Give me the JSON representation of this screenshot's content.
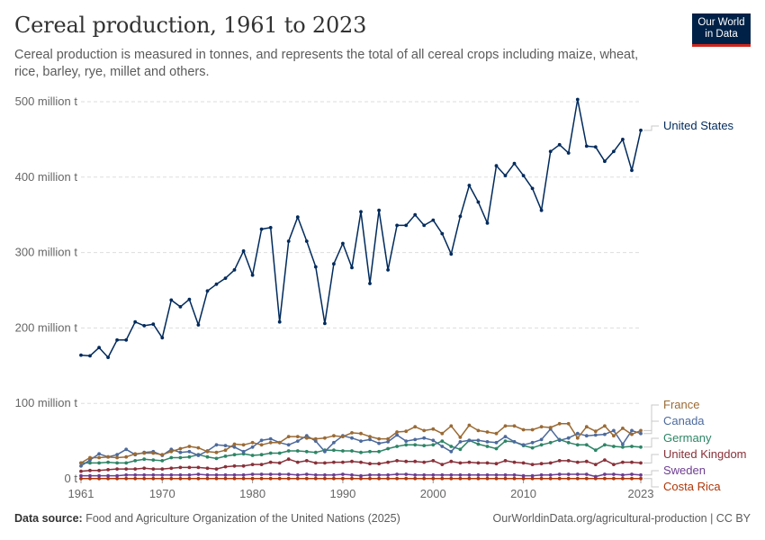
{
  "header": {
    "title": "Cereal production, 1961 to 2023",
    "subtitle": "Cereal production is measured in tonnes, and represents the total of all cereal crops including maize, wheat, rice, barley, rye, millet and others.",
    "logo_line1": "Our World",
    "logo_line2": "in Data"
  },
  "footer": {
    "source_label": "Data source:",
    "source_text": "Food and Agriculture Organization of the United Nations (2025)",
    "right_text": "OurWorldinData.org/agricultural-production | CC BY"
  },
  "chart_data": {
    "type": "line",
    "x_ticks": [
      1961,
      1970,
      1980,
      1990,
      2000,
      2010,
      2023
    ],
    "y_ticks": [
      {
        "value": 0,
        "label": "0 t"
      },
      {
        "value": 100,
        "label": "100 million t"
      },
      {
        "value": 200,
        "label": "200 million t"
      },
      {
        "value": 300,
        "label": "300 million t"
      },
      {
        "value": 400,
        "label": "400 million t"
      },
      {
        "value": 500,
        "label": "500 million t"
      }
    ],
    "ylim": [
      0,
      500
    ],
    "xlim": [
      1961,
      2023
    ],
    "y_unit": "million t",
    "grid": true,
    "x": [
      1961,
      1962,
      1963,
      1964,
      1965,
      1966,
      1967,
      1968,
      1969,
      1970,
      1971,
      1972,
      1973,
      1974,
      1975,
      1976,
      1977,
      1978,
      1979,
      1980,
      1981,
      1982,
      1983,
      1984,
      1985,
      1986,
      1987,
      1988,
      1989,
      1990,
      1991,
      1992,
      1993,
      1994,
      1995,
      1996,
      1997,
      1998,
      1999,
      2000,
      2001,
      2002,
      2003,
      2004,
      2005,
      2006,
      2007,
      2008,
      2009,
      2010,
      2011,
      2012,
      2013,
      2014,
      2015,
      2016,
      2017,
      2018,
      2019,
      2020,
      2021,
      2022,
      2023
    ],
    "series": [
      {
        "name": "United States",
        "color": "#002a5c",
        "values": [
          164,
          163,
          174,
          161,
          184,
          184,
          208,
          203,
          205,
          187,
          237,
          228,
          238,
          204,
          249,
          258,
          266,
          277,
          302,
          270,
          331,
          333,
          208,
          315,
          347,
          315,
          281,
          206,
          285,
          312,
          280,
          354,
          259,
          356,
          277,
          336,
          336,
          350,
          336,
          343,
          325,
          298,
          348,
          389,
          367,
          339,
          415,
          402,
          418,
          402,
          385,
          356,
          434,
          443,
          432,
          503,
          441,
          440,
          421,
          434,
          450,
          409,
          462
        ]
      },
      {
        "name": "France",
        "color": "#9a6a34",
        "values": [
          21,
          28,
          28,
          29,
          28,
          29,
          33,
          34,
          34,
          32,
          36,
          40,
          43,
          41,
          36,
          35,
          38,
          46,
          45,
          48,
          45,
          48,
          48,
          56,
          56,
          54,
          53,
          54,
          57,
          56,
          61,
          60,
          56,
          53,
          53,
          62,
          63,
          69,
          64,
          66,
          60,
          70,
          55,
          71,
          64,
          62,
          60,
          70,
          70,
          65,
          65,
          69,
          68,
          73,
          73,
          54,
          69,
          63,
          70,
          57,
          67,
          59,
          64
        ]
      },
      {
        "name": "Canada",
        "color": "#4c6a9c",
        "values": [
          17,
          25,
          33,
          29,
          32,
          39,
          32,
          35,
          36,
          31,
          39,
          35,
          36,
          31,
          37,
          45,
          44,
          42,
          36,
          42,
          51,
          53,
          48,
          45,
          50,
          57,
          50,
          36,
          48,
          57,
          54,
          50,
          52,
          47,
          49,
          58,
          50,
          52,
          54,
          51,
          43,
          36,
          49,
          51,
          51,
          49,
          48,
          56,
          49,
          45,
          48,
          52,
          66,
          51,
          54,
          60,
          57,
          58,
          59,
          64,
          46,
          64,
          60
        ]
      },
      {
        "name": "Germany",
        "color": "#2d8566",
        "values": [
          21,
          21,
          21,
          22,
          21,
          21,
          24,
          26,
          25,
          24,
          28,
          28,
          29,
          32,
          29,
          27,
          30,
          32,
          33,
          31,
          32,
          34,
          34,
          37,
          37,
          36,
          35,
          38,
          38,
          37,
          37,
          35,
          36,
          36,
          40,
          43,
          45,
          45,
          44,
          45,
          50,
          43,
          39,
          51,
          46,
          43,
          40,
          50,
          49,
          44,
          41,
          45,
          48,
          52,
          48,
          45,
          45,
          38,
          45,
          43,
          42,
          43,
          42
        ]
      },
      {
        "name": "United Kingdom",
        "color": "#883039",
        "values": [
          10,
          11,
          11,
          12,
          13,
          13,
          13,
          14,
          13,
          13,
          14,
          15,
          15,
          15,
          14,
          13,
          16,
          17,
          17,
          19,
          19,
          22,
          21,
          26,
          22,
          24,
          21,
          21,
          22,
          22,
          23,
          22,
          20,
          20,
          22,
          24,
          23,
          23,
          22,
          24,
          19,
          23,
          21,
          22,
          21,
          21,
          20,
          24,
          22,
          21,
          19,
          20,
          21,
          24,
          24,
          22,
          23,
          19,
          25,
          19,
          22,
          22,
          21
        ]
      },
      {
        "name": "Sweden",
        "color": "#6d3e91",
        "values": [
          4,
          4,
          4,
          4,
          4,
          5,
          5,
          5,
          5,
          5,
          5,
          5,
          5,
          6,
          5,
          5,
          5,
          5,
          5,
          6,
          6,
          6,
          6,
          6,
          5,
          6,
          5,
          5,
          5,
          6,
          5,
          4,
          5,
          5,
          5,
          6,
          6,
          5,
          5,
          5,
          5,
          5,
          5,
          5,
          5,
          5,
          5,
          5,
          5,
          4,
          4,
          5,
          5,
          6,
          6,
          6,
          6,
          3,
          6,
          6,
          5,
          6,
          5
        ]
      },
      {
        "name": "Costa Rica",
        "color": "#b13507",
        "values": [
          0.2,
          0.2,
          0.2,
          0.2,
          0.2,
          0.2,
          0.2,
          0.2,
          0.2,
          0.2,
          0.2,
          0.2,
          0.2,
          0.2,
          0.3,
          0.3,
          0.3,
          0.3,
          0.3,
          0.3,
          0.3,
          0.3,
          0.3,
          0.3,
          0.3,
          0.3,
          0.3,
          0.3,
          0.3,
          0.3,
          0.3,
          0.3,
          0.3,
          0.3,
          0.3,
          0.3,
          0.3,
          0.3,
          0.3,
          0.3,
          0.3,
          0.3,
          0.3,
          0.3,
          0.3,
          0.3,
          0.3,
          0.3,
          0.3,
          0.3,
          0.3,
          0.3,
          0.3,
          0.3,
          0.3,
          0.3,
          0.3,
          0.3,
          0.3,
          0.3,
          0.3,
          0.3,
          0.3
        ]
      }
    ]
  }
}
